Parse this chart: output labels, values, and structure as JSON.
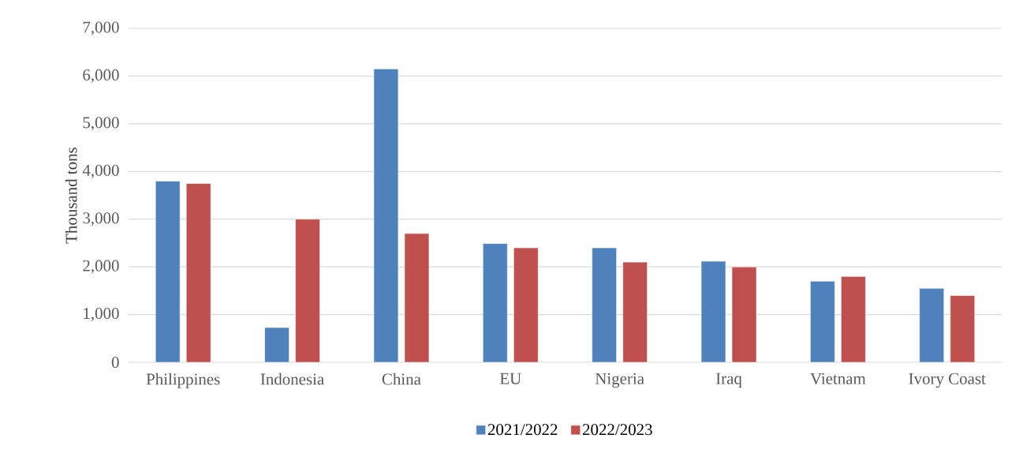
{
  "chart_data": {
    "type": "bar",
    "ylabel": "Thousand tons",
    "categories": [
      "Philippines",
      "Indonesia",
      "China",
      "EU",
      "Nigeria",
      "Iraq",
      "Vietnam",
      "Ivory Coast"
    ],
    "series": [
      {
        "name": "2021/2022",
        "color": "#4f81bd",
        "values": [
          3800,
          730,
          6150,
          2490,
          2400,
          2120,
          1700,
          1550
        ]
      },
      {
        "name": "2022/2023",
        "color": "#c0504d",
        "values": [
          3750,
          3000,
          2700,
          2400,
          2100,
          2000,
          1800,
          1400
        ]
      }
    ],
    "ylim": [
      0,
      7000
    ],
    "yticks": [
      0,
      {
        "value": 1000,
        "label": "1,000"
      },
      {
        "value": 2000,
        "label": "2,000"
      },
      {
        "value": 3000,
        "label": "3,000"
      },
      {
        "value": 4000,
        "label": "4,000"
      },
      {
        "value": 5000,
        "label": "5,000"
      },
      {
        "value": 6000,
        "label": "6,000"
      },
      {
        "value": 7000,
        "label": "7,000"
      }
    ],
    "grid": "y",
    "legend": "bottom"
  }
}
